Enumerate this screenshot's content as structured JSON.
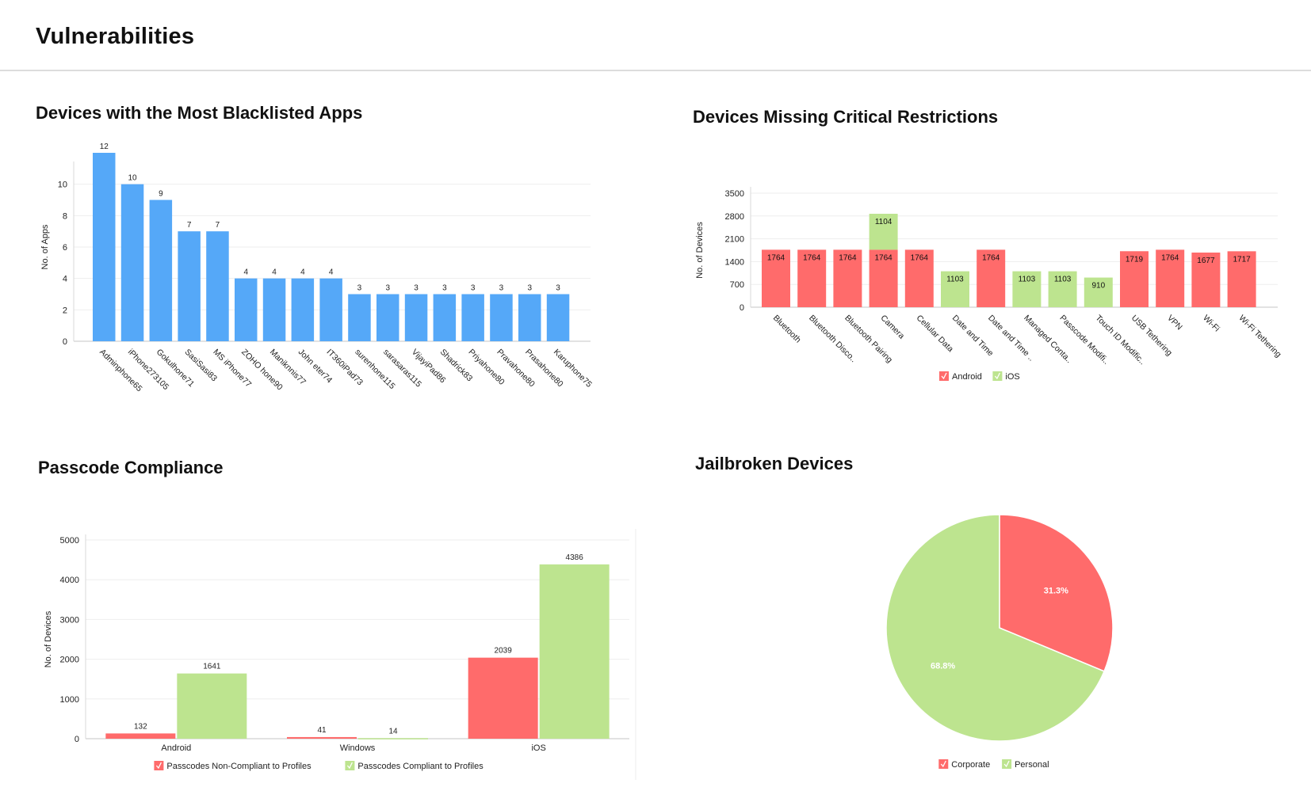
{
  "page": {
    "title": "Vulnerabilities"
  },
  "colors": {
    "blue": "#55a8f8",
    "red": "#ff6b6b",
    "green": "#bde48f",
    "grid": "#eeeeee",
    "axis": "#d9d9d9"
  },
  "chart_data": [
    {
      "id": "blacklisted",
      "type": "bar",
      "title": "Devices with the Most Blacklisted Apps",
      "xlabel": "",
      "ylabel": "No. of Apps",
      "ylim": [
        0,
        12
      ],
      "yticks": [
        0,
        2,
        4,
        6,
        8,
        10
      ],
      "grid": true,
      "categories": [
        "Adminphone65",
        "iPhone273105",
        "Gokulhone71",
        "SasiSasi83",
        "MS iPhone77",
        "ZOHO hone90",
        "Maniknnis77",
        "John eter74",
        "IT360iPad73",
        "surenhone115",
        "sarasaras115",
        "VijayiPad86",
        "Shadrick83",
        "Priyahone80",
        "Pravahone80",
        "Prasahone80",
        "Karuphone75"
      ],
      "values": [
        12,
        10,
        9,
        7,
        7,
        4,
        4,
        4,
        4,
        3,
        3,
        3,
        3,
        3,
        3,
        3,
        3
      ]
    },
    {
      "id": "restrictions",
      "type": "bar",
      "stacked": true,
      "title": "Devices Missing Critical Restrictions",
      "xlabel": "",
      "ylabel": "No. of Devices",
      "ylim": [
        0,
        3500
      ],
      "yticks": [
        0,
        700,
        1400,
        2100,
        2800,
        3500
      ],
      "grid": true,
      "legend": "bottom",
      "categories": [
        "Bluetooth",
        "Bluetooth Disco..",
        "Bluetooth Pairing",
        "Camera",
        "Cellular Data",
        "Date and Time",
        "Date and Time ..",
        "Managed Conta..",
        "Passcode Modifi..",
        "Touch ID Modific..",
        "USB Tethering",
        "VPN",
        "Wi-Fi",
        "Wi-Fi Tethering"
      ],
      "series": [
        {
          "name": "Android",
          "color": "#ff6b6b",
          "values": [
            1764,
            1764,
            1764,
            1764,
            1764,
            0,
            1764,
            0,
            0,
            0,
            1719,
            1764,
            1677,
            1717
          ]
        },
        {
          "name": "iOS",
          "color": "#bde48f",
          "values": [
            0,
            0,
            0,
            1104,
            0,
            1103,
            0,
            1103,
            1103,
            910,
            0,
            0,
            0,
            0
          ]
        }
      ]
    },
    {
      "id": "passcode",
      "type": "bar",
      "title": "Passcode Compliance",
      "xlabel": "",
      "ylabel": "No. of Devices",
      "ylim": [
        0,
        5000
      ],
      "yticks": [
        0,
        1000,
        2000,
        3000,
        4000,
        5000
      ],
      "grid": true,
      "legend": "bottom",
      "categories": [
        "Android",
        "Windows",
        "iOS"
      ],
      "series": [
        {
          "name": "Passcodes Non-Compliant to Profiles",
          "color": "#ff6b6b",
          "values": [
            132,
            41,
            2039
          ]
        },
        {
          "name": "Passcodes Compliant to Profiles",
          "color": "#bde48f",
          "values": [
            1641,
            14,
            4386
          ]
        }
      ]
    },
    {
      "id": "jailbroken",
      "type": "pie",
      "title": "Jailbroken Devices",
      "legend": "bottom",
      "slices": [
        {
          "name": "Corporate",
          "value": 31.3,
          "label": "31.3%",
          "color": "#ff6b6b"
        },
        {
          "name": "Personal",
          "value": 68.8,
          "label": "68.8%",
          "color": "#bde48f"
        }
      ]
    }
  ]
}
